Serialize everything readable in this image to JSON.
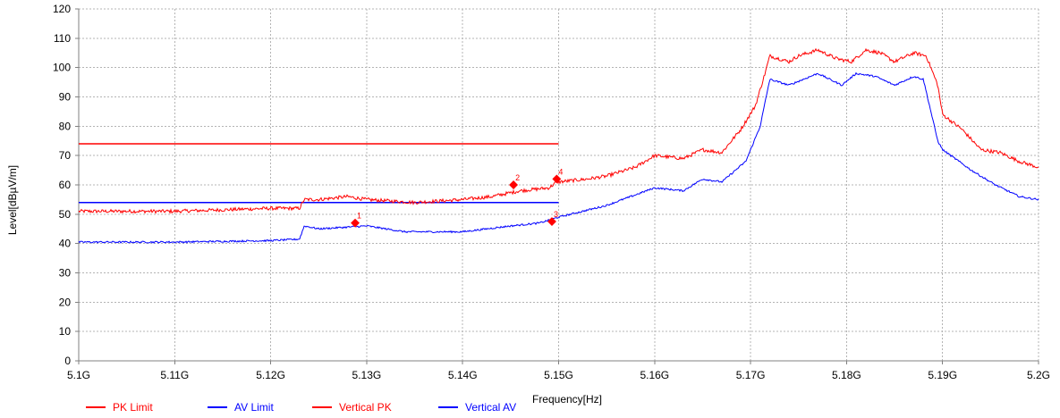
{
  "chart_data": {
    "type": "line",
    "title": "",
    "xlabel": "Frequency[Hz]",
    "ylabel": "Level[dBµV/m]",
    "xlim": [
      5.1,
      5.2
    ],
    "ylim": [
      0,
      120
    ],
    "grid": true,
    "legend_position": "bottom-left",
    "x_ticks": [
      5.1,
      5.11,
      5.12,
      5.13,
      5.14,
      5.15,
      5.16,
      5.17,
      5.18,
      5.19,
      5.2
    ],
    "x_tick_labels": [
      "5.1G",
      "5.11G",
      "5.12G",
      "5.13G",
      "5.14G",
      "5.15G",
      "5.16G",
      "5.17G",
      "5.18G",
      "5.19G",
      "5.2G"
    ],
    "y_ticks": [
      0,
      10,
      20,
      30,
      40,
      50,
      60,
      70,
      80,
      90,
      100,
      110,
      120
    ],
    "y_tick_labels": [
      "0",
      "10",
      "20",
      "30",
      "40",
      "50",
      "60",
      "70",
      "80",
      "90",
      "100",
      "110",
      "120"
    ],
    "series": [
      {
        "name": "PK Limit",
        "color": "#ff0000",
        "noise": 0,
        "x": [
          5.1,
          5.15
        ],
        "y": [
          74,
          74
        ]
      },
      {
        "name": "AV Limit",
        "color": "#0000ff",
        "noise": 0,
        "x": [
          5.1,
          5.15
        ],
        "y": [
          54,
          54
        ]
      },
      {
        "name": "Vertical PK",
        "color": "#ff0000",
        "noise": 0.6,
        "x": [
          5.1,
          5.11,
          5.12,
          5.123,
          5.1235,
          5.125,
          5.128,
          5.13,
          5.135,
          5.14,
          5.143,
          5.146,
          5.149,
          5.1498,
          5.15,
          5.153,
          5.155,
          5.158,
          5.16,
          5.163,
          5.165,
          5.167,
          5.169,
          5.1705,
          5.1715,
          5.172,
          5.174,
          5.175,
          5.177,
          5.179,
          5.1805,
          5.182,
          5.1835,
          5.185,
          5.187,
          5.1883,
          5.1895,
          5.19,
          5.192,
          5.194,
          5.196,
          5.198,
          5.2
        ],
        "y": [
          51,
          51,
          52,
          52,
          55,
          55,
          56,
          55,
          54,
          55,
          56,
          58,
          59,
          61,
          61,
          62,
          63,
          66,
          70,
          69,
          72,
          71,
          79,
          87,
          98,
          104,
          102,
          104,
          106,
          103,
          102,
          106,
          105,
          102,
          105,
          104,
          94,
          84,
          79,
          72,
          71,
          68,
          66
        ]
      },
      {
        "name": "Vertical AV",
        "color": "#0000ff",
        "noise": 0.3,
        "x": [
          5.1,
          5.11,
          5.12,
          5.123,
          5.1235,
          5.125,
          5.13,
          5.134,
          5.136,
          5.14,
          5.145,
          5.148,
          5.149,
          5.15,
          5.155,
          5.16,
          5.163,
          5.165,
          5.167,
          5.1695,
          5.171,
          5.172,
          5.174,
          5.177,
          5.1795,
          5.181,
          5.183,
          5.185,
          5.187,
          5.188,
          5.1895,
          5.19,
          5.193,
          5.1955,
          5.198,
          5.2
        ],
        "y": [
          40.5,
          40.5,
          41,
          41.5,
          46,
          45,
          46,
          44,
          44,
          44,
          46,
          47,
          48,
          49,
          53,
          59,
          58,
          62,
          61,
          68,
          80,
          96,
          94,
          98,
          94,
          98,
          97,
          94,
          97,
          96,
          75,
          72,
          65,
          60,
          56,
          55
        ]
      }
    ],
    "markers": [
      {
        "label": "1",
        "x": 5.1288,
        "y": 47
      },
      {
        "label": "2",
        "x": 5.1453,
        "y": 60
      },
      {
        "label": "3",
        "x": 5.1493,
        "y": 47.5
      },
      {
        "label": "4",
        "x": 5.1498,
        "y": 62
      }
    ],
    "colors": {
      "grid": "#b4b4b4",
      "axis": "#808080",
      "marker": "#ff0000"
    }
  }
}
